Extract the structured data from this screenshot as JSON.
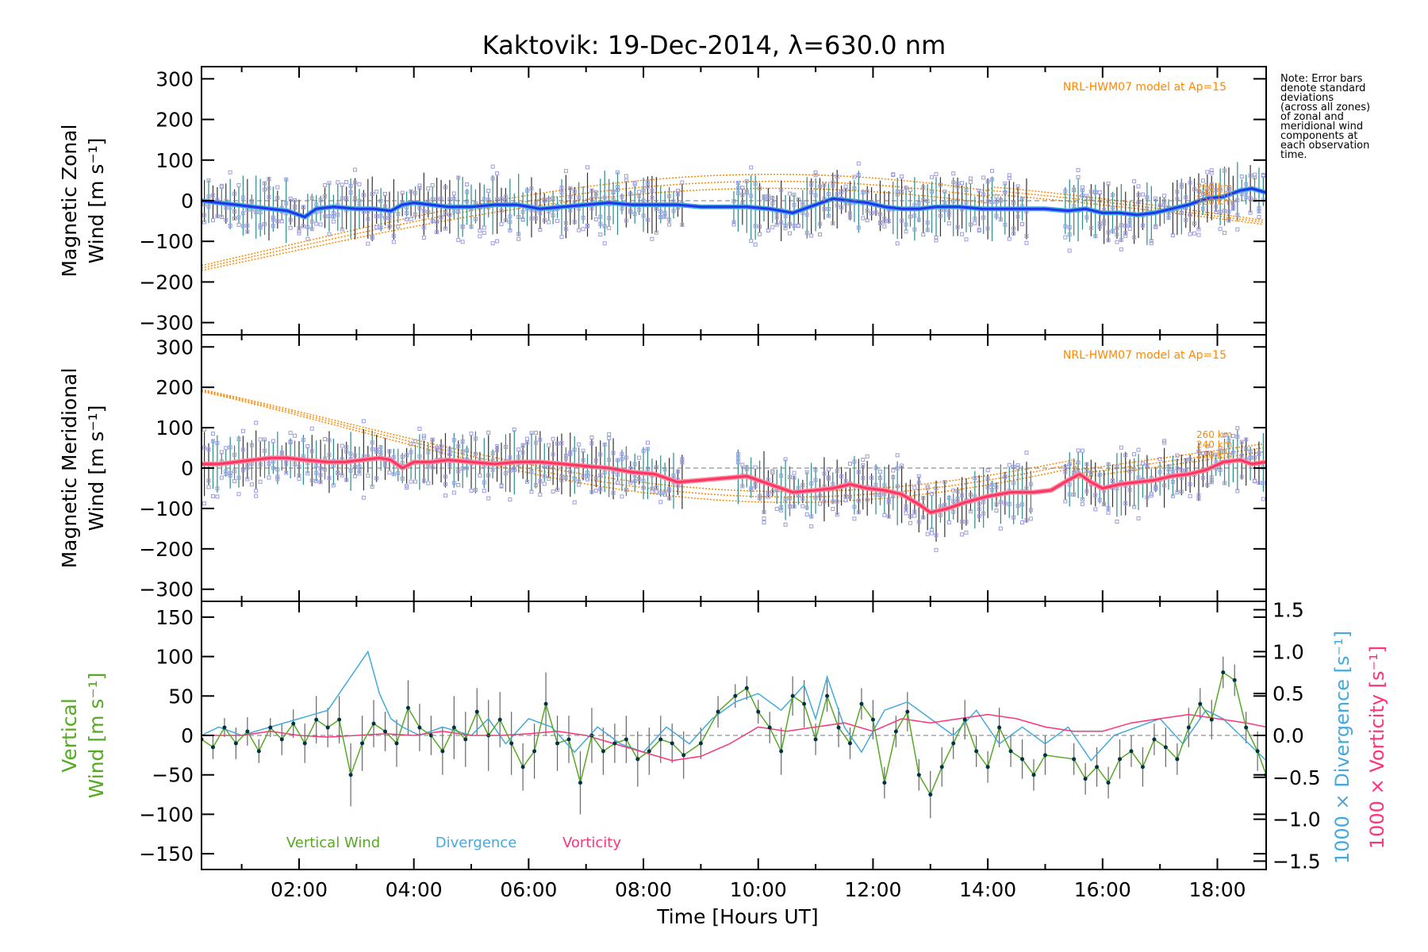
{
  "title": "Kaktovik: 19-Dec-2014, λ=630.0 nm",
  "note_lines": [
    "Note: Error bars",
    "denote standard",
    "deviations",
    "(across all zones)",
    "of zonal and",
    "meridional wind",
    "components at",
    "each observation",
    "time."
  ],
  "colors": {
    "zonal": "#2233ee",
    "zonal_light": "#44aadd",
    "meridional": "#ff3366",
    "vertical": "#55aa22",
    "divergence": "#44aadd",
    "vorticity": "#ff3377",
    "model": "#ff8800",
    "scatter": "#9b9be0",
    "errorbar": "#222222"
  },
  "chart_data": [
    {
      "type": "line",
      "panel": "zonal",
      "ylabel_lines": [
        "Magnetic Zonal",
        "Wind [m s⁻¹]"
      ],
      "yticks": [
        "300",
        "200",
        "100",
        "0",
        "−100",
        "−200",
        "−300"
      ],
      "ylim": [
        -330,
        330
      ],
      "xlim": [
        0.3,
        18.85
      ],
      "model_label": "NRL-HWM07 model at Ap=15",
      "model_altitudes": [
        "260 km",
        "240 km",
        "220 km"
      ],
      "series": [
        {
          "name": "Zonal wind",
          "x": [
            0.3,
            0.6,
            0.9,
            1.2,
            1.5,
            1.8,
            2.1,
            2.3,
            2.6,
            3.0,
            3.3,
            3.6,
            3.8,
            4.0,
            4.3,
            4.6,
            5.0,
            5.4,
            5.8,
            6.2,
            6.6,
            7.0,
            7.4,
            7.8,
            8.2,
            8.6,
            9.0,
            9.4,
            9.8,
            10.2,
            10.6,
            11.0,
            11.3,
            11.6,
            11.9,
            12.2,
            12.5,
            12.8,
            13.1,
            13.5,
            13.9,
            14.3,
            14.7,
            15.0,
            15.4,
            15.7,
            16.0,
            16.3,
            16.6,
            16.9,
            17.2,
            17.5,
            17.8,
            18.1,
            18.4,
            18.6,
            18.85
          ],
          "y": [
            0,
            -5,
            -10,
            -15,
            -20,
            -25,
            -40,
            -20,
            -15,
            -20,
            -20,
            -25,
            -10,
            -5,
            -10,
            -15,
            -15,
            -10,
            -10,
            -20,
            -15,
            -10,
            -5,
            -10,
            -10,
            -10,
            -15,
            -15,
            -15,
            -20,
            -30,
            -10,
            5,
            0,
            -5,
            -15,
            -20,
            -20,
            -15,
            -15,
            -20,
            -20,
            -20,
            -20,
            -25,
            -20,
            -30,
            -30,
            -35,
            -30,
            -20,
            -10,
            5,
            10,
            25,
            30,
            20
          ]
        }
      ]
    },
    {
      "type": "line",
      "panel": "meridional",
      "ylabel_lines": [
        "Magnetic Meridional",
        "Wind [m s⁻¹]"
      ],
      "yticks": [
        "300",
        "200",
        "100",
        "0",
        "−100",
        "−200",
        "−300"
      ],
      "ylim": [
        -330,
        330
      ],
      "xlim": [
        0.3,
        18.85
      ],
      "model_label": "NRL-HWM07 model at Ap=15",
      "model_altitudes": [
        "260 km",
        "240 km",
        "220 km"
      ],
      "series": [
        {
          "name": "Meridional wind",
          "x": [
            0.3,
            0.6,
            0.9,
            1.2,
            1.5,
            1.8,
            2.1,
            2.5,
            2.8,
            3.1,
            3.4,
            3.6,
            3.8,
            4.0,
            4.3,
            4.6,
            5.0,
            5.4,
            5.8,
            6.2,
            6.6,
            7.0,
            7.4,
            7.8,
            8.2,
            8.6,
            9.0,
            9.4,
            9.8,
            10.2,
            10.6,
            11.0,
            11.3,
            11.6,
            11.9,
            12.2,
            12.5,
            12.8,
            13.0,
            13.3,
            13.6,
            14.0,
            14.4,
            14.8,
            15.1,
            15.4,
            15.6,
            15.8,
            16.0,
            16.3,
            16.6,
            16.9,
            17.2,
            17.5,
            17.8,
            18.1,
            18.4,
            18.6,
            18.85
          ],
          "y": [
            10,
            10,
            15,
            20,
            25,
            25,
            20,
            15,
            15,
            20,
            25,
            20,
            0,
            15,
            15,
            20,
            15,
            10,
            15,
            15,
            10,
            5,
            0,
            -10,
            -15,
            -35,
            -30,
            -25,
            -20,
            -40,
            -60,
            -55,
            -50,
            -40,
            -50,
            -55,
            -65,
            -90,
            -110,
            -100,
            -85,
            -70,
            -60,
            -60,
            -55,
            -30,
            -15,
            -35,
            -50,
            -40,
            -35,
            -30,
            -20,
            -15,
            -5,
            15,
            20,
            10,
            15
          ]
        }
      ]
    },
    {
      "type": "line",
      "panel": "vertical",
      "ylabel_lines": [
        "Vertical",
        "Wind [m s⁻¹]"
      ],
      "y2label_lines": [
        "1000 × Divergence [s⁻¹]",
        "1000 × Vorticity [s⁻¹]"
      ],
      "xlabel": "Time [Hours UT]",
      "xticks": [
        "02:00",
        "04:00",
        "06:00",
        "08:00",
        "10:00",
        "12:00",
        "14:00",
        "16:00",
        "18:00"
      ],
      "yticks": [
        "150",
        "100",
        "50",
        "0",
        "−50",
        "−100",
        "−150"
      ],
      "y2ticks": [
        "1.5",
        "1.0",
        "0.5",
        "0.0",
        "−0.5",
        "−1.0",
        "−1.5"
      ],
      "ylim": [
        -170,
        170
      ],
      "y2lim": [
        -1.6,
        1.6
      ],
      "xlim": [
        0.3,
        18.85
      ],
      "legend": [
        "Vertical Wind",
        "Divergence",
        "Vorticity"
      ],
      "series": [
        {
          "name": "Vertical Wind",
          "x": [
            0.3,
            0.5,
            0.7,
            0.9,
            1.1,
            1.3,
            1.5,
            1.7,
            1.9,
            2.1,
            2.3,
            2.5,
            2.7,
            2.9,
            3.1,
            3.3,
            3.5,
            3.7,
            3.9,
            4.1,
            4.3,
            4.5,
            4.7,
            4.9,
            5.1,
            5.3,
            5.5,
            5.7,
            5.9,
            6.1,
            6.3,
            6.5,
            6.7,
            6.9,
            7.1,
            7.3,
            7.5,
            7.7,
            7.9,
            8.1,
            8.3,
            8.5,
            8.7,
            9.0,
            9.3,
            9.6,
            9.8,
            10.0,
            10.2,
            10.4,
            10.6,
            10.8,
            11.0,
            11.2,
            11.4,
            11.6,
            11.8,
            12.0,
            12.2,
            12.4,
            12.6,
            12.8,
            13.0,
            13.2,
            13.4,
            13.6,
            13.8,
            14.0,
            14.2,
            14.4,
            14.6,
            14.8,
            15.0,
            15.5,
            15.7,
            15.9,
            16.1,
            16.3,
            16.5,
            16.7,
            16.9,
            17.1,
            17.3,
            17.5,
            17.7,
            17.9,
            18.1,
            18.3,
            18.5,
            18.7,
            18.85
          ],
          "y": [
            -5,
            -15,
            10,
            -10,
            5,
            -20,
            10,
            -5,
            15,
            -10,
            20,
            10,
            20,
            -50,
            -10,
            15,
            5,
            -10,
            35,
            10,
            0,
            -20,
            10,
            -5,
            30,
            0,
            20,
            -10,
            -40,
            -20,
            40,
            -10,
            -5,
            -60,
            0,
            -20,
            -10,
            -5,
            -30,
            -20,
            -5,
            -10,
            -25,
            -10,
            30,
            50,
            60,
            30,
            10,
            -20,
            50,
            40,
            -5,
            50,
            10,
            -10,
            40,
            20,
            -60,
            5,
            30,
            -50,
            -75,
            -40,
            -10,
            20,
            -20,
            -40,
            10,
            -20,
            -30,
            -50,
            -25,
            -30,
            -55,
            -40,
            -60,
            -30,
            -20,
            -40,
            -5,
            -15,
            -30,
            10,
            40,
            20,
            80,
            70,
            10,
            -20,
            -50
          ],
          "errors": [
            10,
            15,
            12,
            20,
            18,
            15,
            12,
            20,
            18,
            25,
            30,
            25,
            30,
            40,
            35,
            30,
            25,
            30,
            35,
            30,
            25,
            30,
            40,
            35,
            30,
            45,
            35,
            40,
            30,
            35,
            40,
            35,
            30,
            40,
            35,
            30,
            25,
            30,
            35,
            30,
            30,
            25,
            30,
            20,
            20,
            15,
            15,
            15,
            20,
            30,
            25,
            30,
            20,
            20,
            25,
            20,
            20,
            25,
            20,
            20,
            25,
            20,
            30,
            25,
            20,
            25,
            20,
            20,
            25,
            20,
            25,
            20,
            25,
            20,
            20,
            25,
            20,
            25,
            20,
            25,
            20,
            25,
            20,
            25,
            20,
            25,
            20,
            20,
            20,
            25,
            20
          ]
        },
        {
          "name": "Divergence",
          "x": [
            0.3,
            0.6,
            1.0,
            1.5,
            2.0,
            2.5,
            2.9,
            3.2,
            3.4,
            3.6,
            3.8,
            4.1,
            4.5,
            5.0,
            5.3,
            5.6,
            6.0,
            6.4,
            6.8,
            7.2,
            7.6,
            8.0,
            8.4,
            8.8,
            9.2,
            9.6,
            10.0,
            10.4,
            10.8,
            11.0,
            11.2,
            11.5,
            11.8,
            12.2,
            12.6,
            13.0,
            13.4,
            13.8,
            14.2,
            14.6,
            15.0,
            15.4,
            15.8,
            16.2,
            16.6,
            17.0,
            17.4,
            17.8,
            18.1,
            18.4,
            18.85
          ],
          "y": [
            0,
            0.1,
            0.0,
            0.1,
            0.2,
            0.3,
            0.7,
            1.0,
            0.5,
            0.2,
            0.1,
            0.0,
            0.1,
            0.0,
            0.2,
            -0.1,
            0.2,
            0.1,
            -0.2,
            0.1,
            -0.1,
            -0.2,
            0.1,
            -0.1,
            0.2,
            0.4,
            0.5,
            0.3,
            0.6,
            0.2,
            0.7,
            0.1,
            -0.2,
            0.3,
            0.4,
            0.2,
            0.0,
            0.3,
            -0.1,
            0.1,
            -0.1,
            0.1,
            -0.3,
            0.0,
            0.1,
            0.2,
            -0.1,
            0.3,
            0.2,
            0.0,
            -0.3
          ]
        },
        {
          "name": "Vorticity",
          "x": [
            0.3,
            1.0,
            1.5,
            2.0,
            2.5,
            3.0,
            3.5,
            4.0,
            4.5,
            5.0,
            5.5,
            6.0,
            6.5,
            7.0,
            7.5,
            8.0,
            8.5,
            9.0,
            9.5,
            10.0,
            10.5,
            11.0,
            11.5,
            12.0,
            12.5,
            13.0,
            13.5,
            14.0,
            14.5,
            15.0,
            15.5,
            16.0,
            16.5,
            17.0,
            17.5,
            18.0,
            18.5,
            18.85
          ],
          "y": [
            0.0,
            0.0,
            0.05,
            0.0,
            -0.02,
            0.0,
            0.02,
            0.0,
            0.05,
            0.0,
            0.0,
            0.02,
            0.05,
            0.0,
            -0.1,
            -0.2,
            -0.3,
            -0.25,
            -0.1,
            0.1,
            0.05,
            0.1,
            0.15,
            0.05,
            0.2,
            0.15,
            0.2,
            0.25,
            0.2,
            0.1,
            0.05,
            0.05,
            0.15,
            0.2,
            0.25,
            0.2,
            0.15,
            0.1
          ]
        }
      ]
    }
  ]
}
